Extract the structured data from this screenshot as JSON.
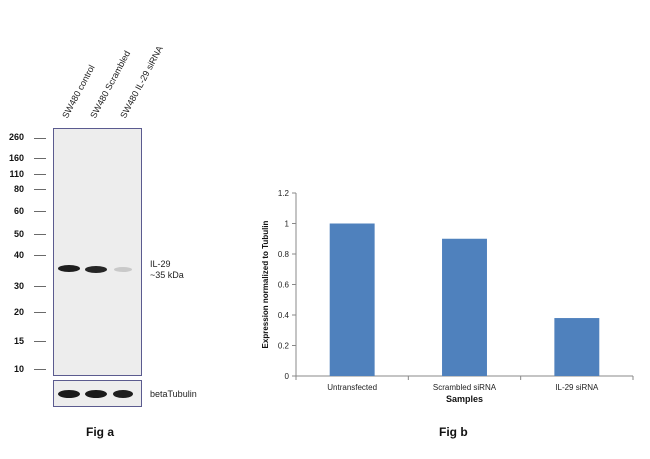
{
  "fig_a": {
    "lanes": [
      "SW480 control",
      "SW480 Scrambled",
      "SW480 IL-29 siRNA"
    ],
    "mw_markers": [
      "260",
      "160",
      "110",
      "80",
      "60",
      "50",
      "40",
      "30",
      "20",
      "15",
      "10"
    ],
    "band_label_line1": "IL-29",
    "band_label_line2": "~35 kDa",
    "loading_control_label": "betaTubulin",
    "caption": "Fig a"
  },
  "fig_b": {
    "caption": "Fig b"
  },
  "chart_data": {
    "type": "bar",
    "categories": [
      "Untransfected",
      "Scrambled siRNA",
      "IL-29 siRNA"
    ],
    "values": [
      1.0,
      0.9,
      0.38
    ],
    "xlabel": "Samples",
    "ylabel": "Expression  normalized to Tubulin",
    "ylim": [
      0,
      1.2
    ],
    "yticks": [
      "0",
      "0.2",
      "0.4",
      "0.6",
      "0.8",
      "1",
      "1.2"
    ],
    "bar_color": "#4f81bd",
    "grid": false
  }
}
